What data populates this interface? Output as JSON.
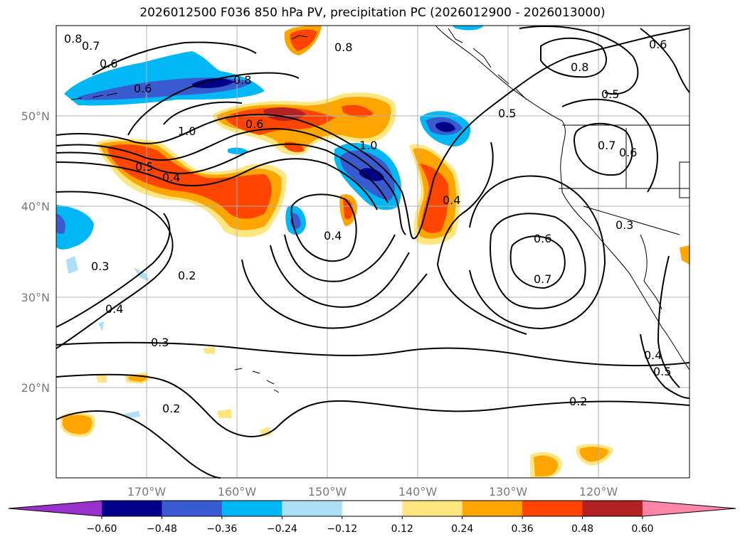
{
  "title": "2026012500 F036 850 hPa PV, precipitation PC (2026012900 - 2026013000)",
  "lat_labels": [
    "50°N",
    "40°N",
    "30°N",
    "20°N"
  ],
  "lon_labels": [
    "170°W",
    "160°W",
    "150°W",
    "140°W",
    "130°W",
    "120°W"
  ],
  "contour_labels": [
    "0.8",
    "0.7",
    "0.6",
    "0.6",
    "0.8",
    "0.8",
    "0.6",
    "0.8",
    "0.5",
    "0.5",
    "1.0",
    "0.6",
    "1.0",
    "0.7",
    "0.6",
    "0.5",
    "0.4",
    "0.4",
    "0.4",
    "0.3",
    "0.6",
    "0.7",
    "0.3",
    "0.2",
    "0.4",
    "0.3",
    "0.2",
    "0.2",
    "0.4",
    "0.5"
  ],
  "colorbar": {
    "ticks": [
      "−0.60",
      "−0.48",
      "−0.36",
      "−0.24",
      "−0.12",
      "0.12",
      "0.24",
      "0.36",
      "0.48",
      "0.60"
    ],
    "colors": [
      "#9932CC",
      "#00008B",
      "#3A5BD0",
      "#00B7F5",
      "#ADDFF7",
      "#FFFFFF",
      "#FFE680",
      "#FFA500",
      "#FF4500",
      "#B22222",
      "#FF85A8"
    ]
  }
}
